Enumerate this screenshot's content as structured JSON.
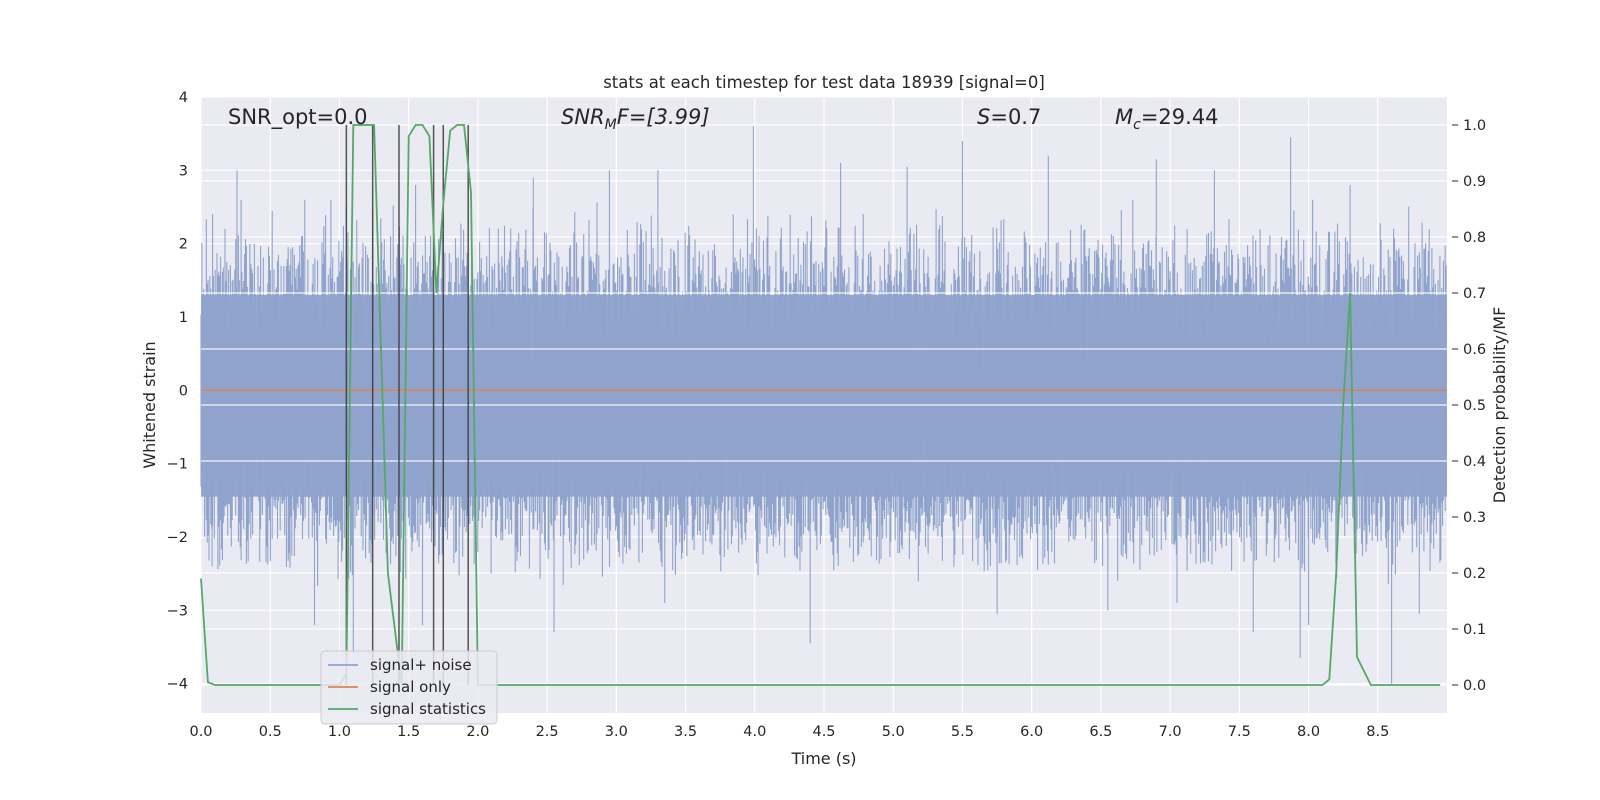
{
  "chart_data": {
    "type": "line",
    "title": "stats at each timestep for test data 18939 [signal=0]",
    "xlabel": "Time (s)",
    "ylabel": "Whitened strain",
    "y2label": "Detection probability/MF",
    "xlim": [
      0.0,
      9.0
    ],
    "ylim": [
      -4.4,
      4.0
    ],
    "y2lim": [
      -0.05,
      1.05
    ],
    "xticks": [
      "0.0",
      "0.5",
      "1.0",
      "1.5",
      "2.0",
      "2.5",
      "3.0",
      "3.5",
      "4.0",
      "4.5",
      "5.0",
      "5.5",
      "6.0",
      "6.5",
      "7.0",
      "7.5",
      "8.0",
      "8.5"
    ],
    "yticks": [
      "4",
      "3",
      "2",
      "1",
      "0",
      "−1",
      "−2",
      "−3",
      "−4"
    ],
    "y2ticks": [
      "1.0",
      "0.9",
      "0.8",
      "0.7",
      "0.6",
      "0.5",
      "0.4",
      "0.3",
      "0.2",
      "0.1",
      "0.0"
    ],
    "grid": true,
    "legend_position": "lower-left",
    "annotations": {
      "snr_opt": "SNR_opt=0.0",
      "snr_mf_main": "SNR",
      "snr_mf_sub": "M",
      "snr_mf_rest": "F=[3.99]",
      "s_main": "S",
      "s_rest": "=0.7",
      "mc_main": "M",
      "mc_sub": "c",
      "mc_rest": "=29.44"
    },
    "series": [
      {
        "name": "signal+ noise",
        "color": "#8fa3cc",
        "envelope": {
          "upper_typical": 1.5,
          "lower_typical": -1.7,
          "sampled_noise": true
        },
        "peaks_up": [
          [
            0.26,
            3.0
          ],
          [
            0.75,
            2.6
          ],
          [
            1.05,
            2.5
          ],
          [
            1.55,
            2.8
          ],
          [
            2.4,
            2.9
          ],
          [
            2.95,
            3.0
          ],
          [
            3.3,
            3.0
          ],
          [
            3.99,
            3.6
          ],
          [
            4.62,
            3.1
          ],
          [
            5.1,
            3.05
          ],
          [
            5.5,
            3.4
          ],
          [
            6.12,
            3.2
          ],
          [
            6.9,
            3.15
          ],
          [
            7.32,
            3.0
          ],
          [
            7.87,
            3.45
          ],
          [
            8.3,
            2.8
          ]
        ],
        "peaks_down": [
          [
            0.08,
            -2.4
          ],
          [
            0.82,
            -3.2
          ],
          [
            1.1,
            -3.6
          ],
          [
            1.6,
            -3.2
          ],
          [
            2.55,
            -3.3
          ],
          [
            3.35,
            -2.9
          ],
          [
            4.4,
            -3.45
          ],
          [
            5.75,
            -3.05
          ],
          [
            6.55,
            -3.0
          ],
          [
            7.05,
            -2.9
          ],
          [
            7.6,
            -3.3
          ],
          [
            7.94,
            -3.65
          ],
          [
            8.0,
            -3.2
          ],
          [
            8.6,
            -4.0
          ],
          [
            8.8,
            -3.05
          ]
        ]
      },
      {
        "name": "signal only",
        "color": "#dd8452",
        "x": [
          0.0,
          9.0
        ],
        "y": [
          0.0,
          0.0
        ]
      },
      {
        "name": "signal statistics",
        "color": "#55a868",
        "axis": "right",
        "x": [
          0.0,
          0.05,
          0.1,
          1.0,
          1.05,
          1.1,
          1.15,
          1.2,
          1.25,
          1.35,
          1.45,
          1.5,
          1.55,
          1.6,
          1.65,
          1.7,
          1.75,
          1.8,
          1.85,
          1.9,
          1.95,
          2.0,
          2.05,
          2.1,
          8.1,
          8.15,
          8.2,
          8.25,
          8.3,
          8.35,
          8.45,
          8.5,
          8.95
        ],
        "y": [
          0.19,
          0.005,
          0.0,
          0.0,
          0.02,
          1.0,
          1.0,
          1.0,
          1.0,
          0.2,
          0.0,
          0.98,
          1.0,
          1.0,
          0.98,
          0.7,
          0.86,
          0.99,
          1.0,
          1.0,
          0.88,
          0.0,
          0.0,
          0.0,
          0.0,
          0.01,
          0.2,
          0.5,
          0.7,
          0.05,
          0.0,
          0.0,
          0.0
        ]
      }
    ],
    "vertical_markers": [
      1.05,
      1.24,
      1.43,
      1.68,
      1.75,
      1.93
    ]
  }
}
